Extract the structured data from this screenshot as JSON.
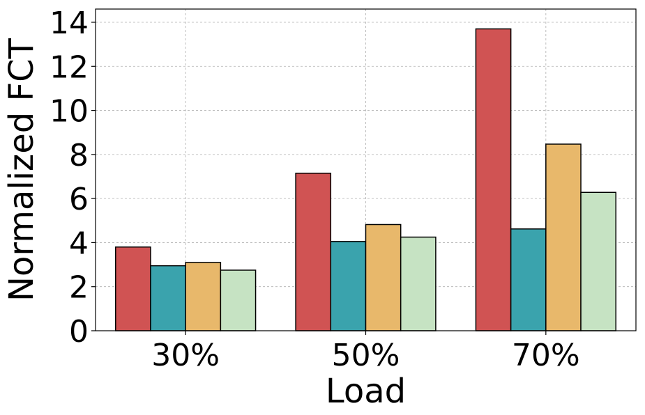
{
  "chart_data": {
    "type": "bar",
    "title": "",
    "xlabel": "Load",
    "ylabel": "Normalized FCT",
    "categories": [
      "30%",
      "50%",
      "70%"
    ],
    "series": [
      {
        "color": "#d05353",
        "values": [
          3.8,
          7.15,
          13.7
        ]
      },
      {
        "color": "#3aa3ad",
        "values": [
          2.95,
          4.05,
          4.62
        ]
      },
      {
        "color": "#e8b86b",
        "values": [
          3.1,
          4.82,
          8.47
        ]
      },
      {
        "color": "#c6e3c3",
        "values": [
          2.75,
          4.25,
          6.28
        ]
      }
    ],
    "ylim": [
      0,
      14.6
    ],
    "yticks": [
      "0",
      "2",
      "4",
      "6",
      "8",
      "10",
      "12",
      "14"
    ],
    "grid": true,
    "legend": "none"
  }
}
